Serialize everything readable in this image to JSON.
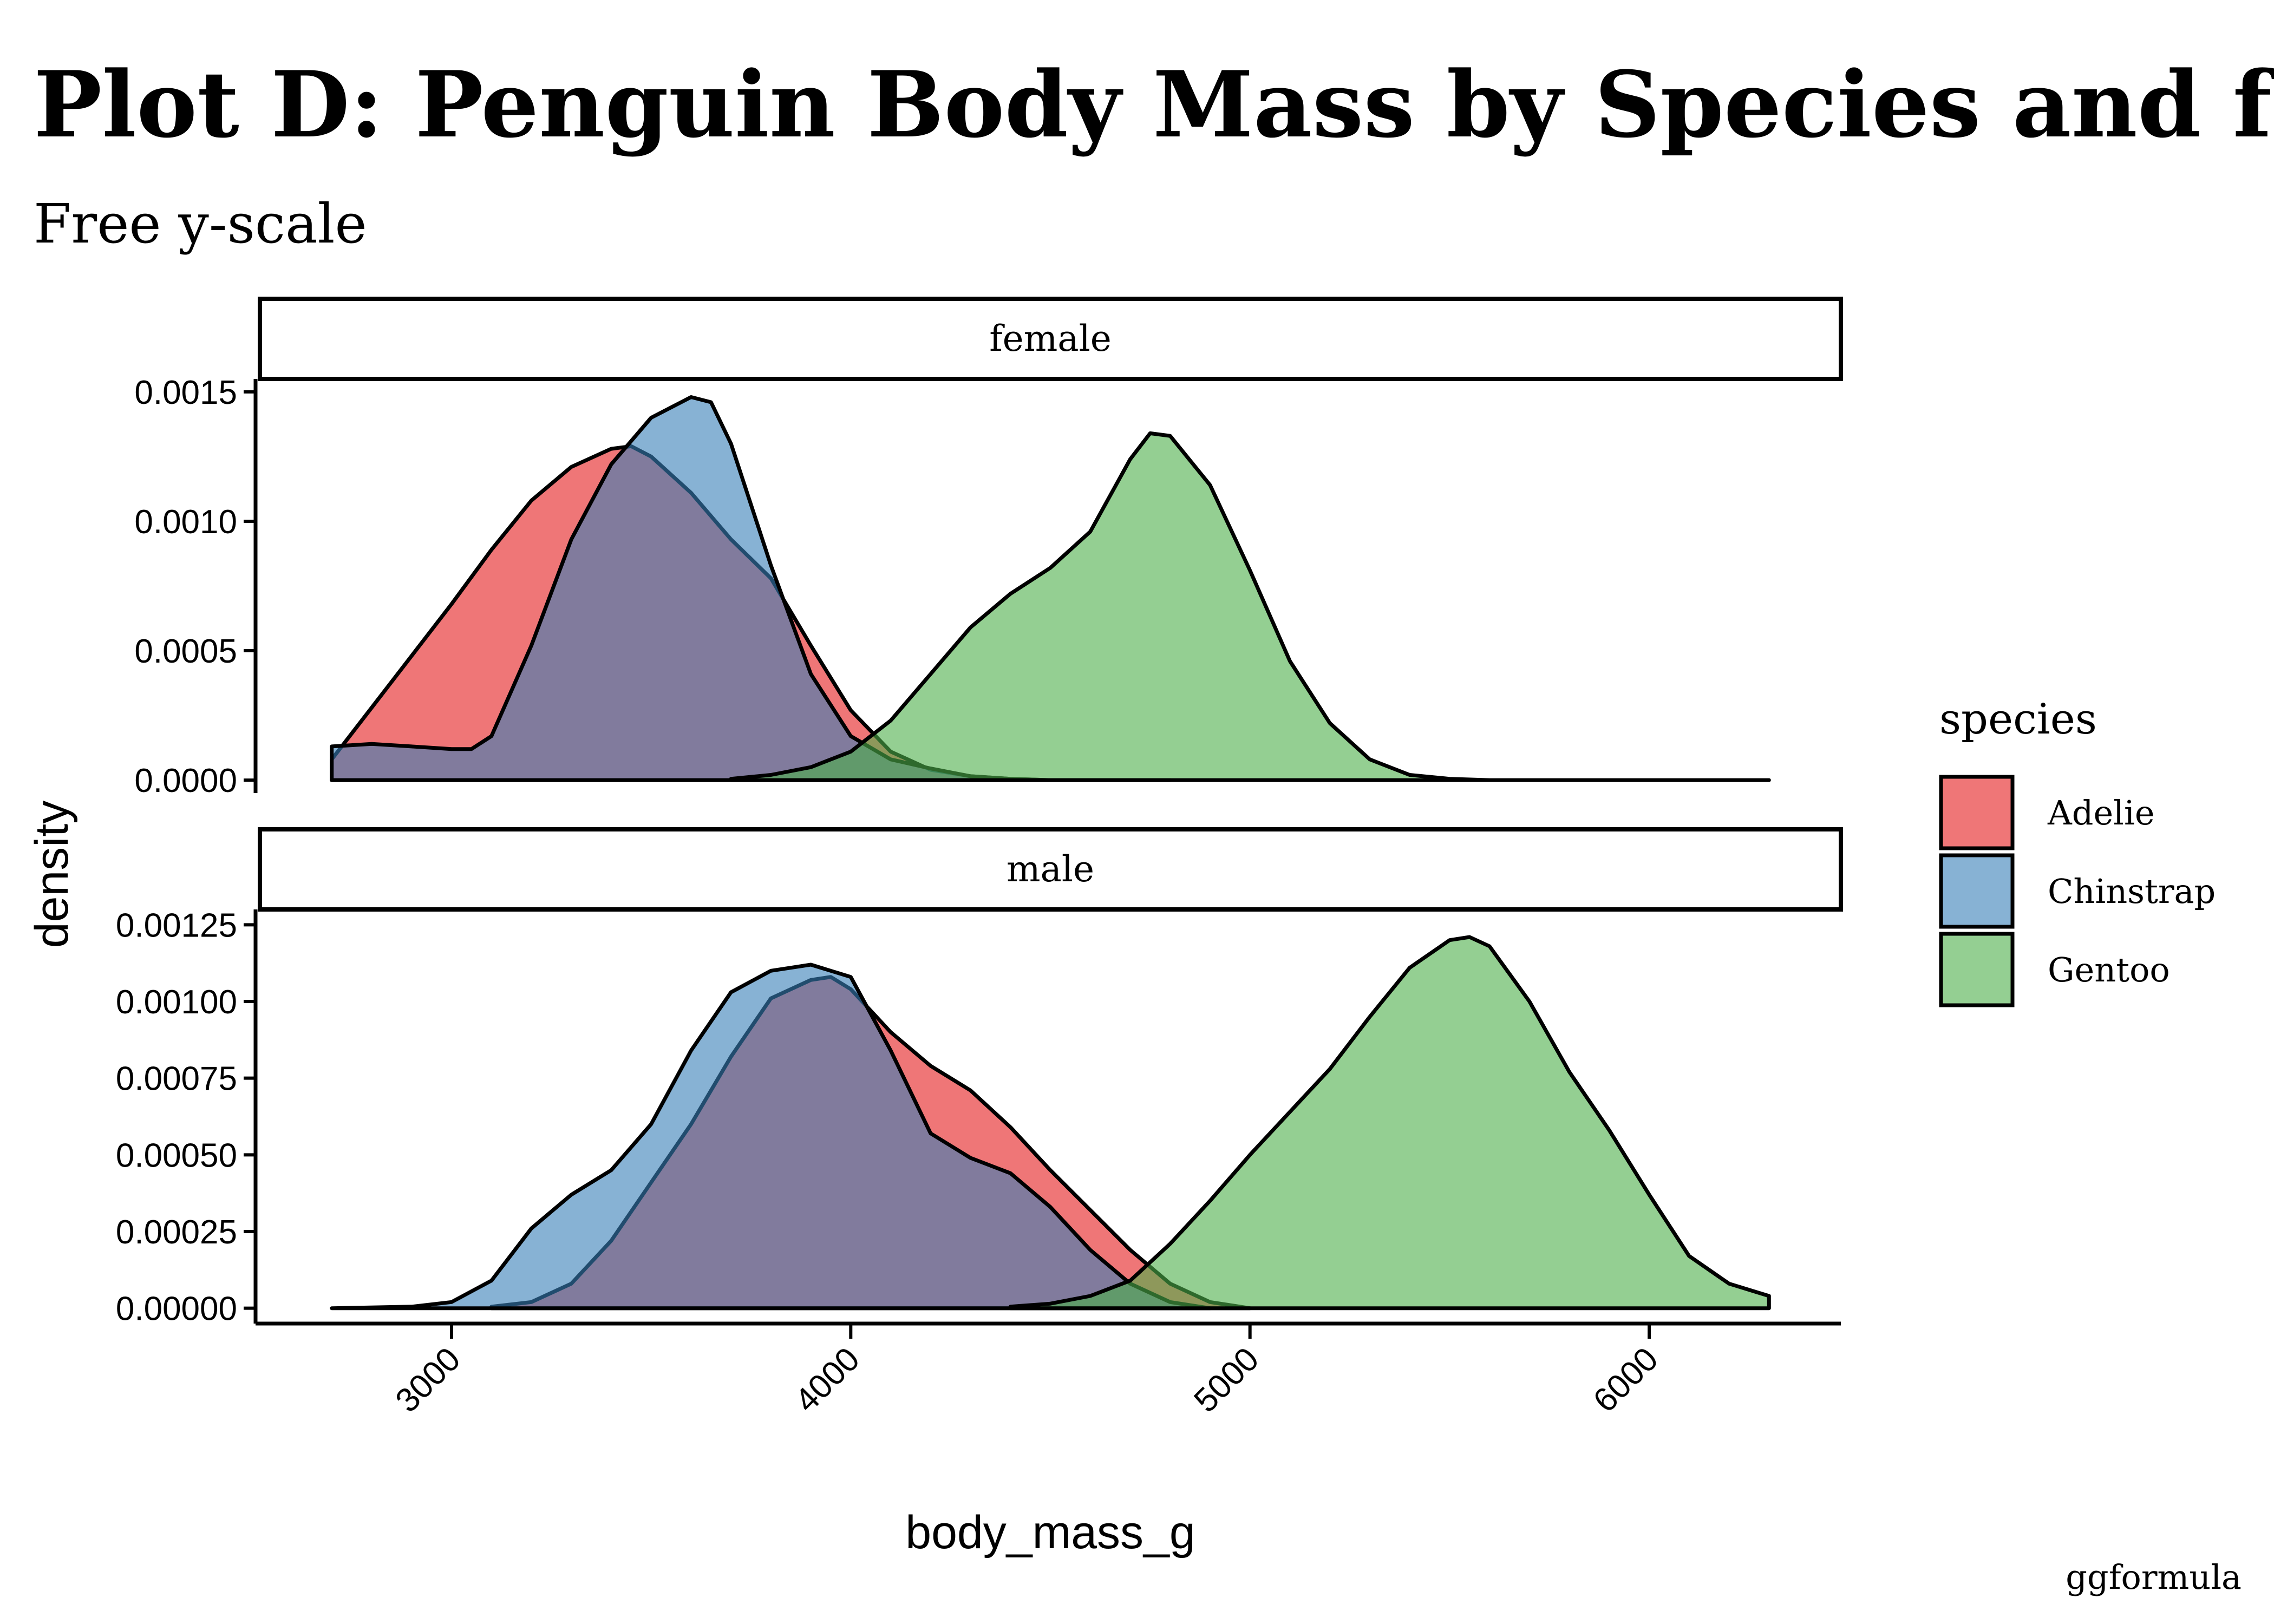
{
  "title": "Plot D: Penguin Body Mass by Species and facetted",
  "subtitle": "Free y-scale",
  "caption": "ggformula",
  "chart_data": {
    "type": "area",
    "subtype": "density",
    "xlabel": "body_mass_g",
    "ylabel": "density",
    "xlim": [
      2520,
      6480
    ],
    "x_ticks": [
      3000,
      4000,
      5000,
      6000
    ],
    "x_tick_labels": [
      "3000",
      "4000",
      "5000",
      "6000"
    ],
    "legend": {
      "title": "species",
      "position": "right",
      "entries": [
        {
          "name": "Adelie",
          "color": "#E41A1C"
        },
        {
          "name": "Chinstrap",
          "color": "#377EB8"
        },
        {
          "name": "Gentoo",
          "color": "#4DAF4A"
        }
      ]
    },
    "facets": [
      {
        "label": "female",
        "ylim": [
          -5e-05,
          0.00155
        ],
        "y_ticks": [
          0,
          0.0005,
          0.001,
          0.0015
        ],
        "y_tick_labels": [
          "0.0000",
          "0.0005",
          "0.0010",
          "0.0015"
        ],
        "series": [
          {
            "name": "Adelie",
            "color": "#E41A1C",
            "x": [
              2700,
              2800,
              2900,
              3000,
              3100,
              3200,
              3300,
              3400,
              3450,
              3500,
              3600,
              3700,
              3800,
              3900,
              4000,
              4100,
              4200,
              4300,
              4400,
              4500,
              4600,
              4700,
              4800
            ],
            "y": [
              8e-05,
              0.00028,
              0.00048,
              0.00068,
              0.00089,
              0.00108,
              0.00121,
              0.00128,
              0.00129,
              0.00125,
              0.00111,
              0.00093,
              0.00078,
              0.00052,
              0.00027,
              0.00011,
              4e-05,
              1.5e-05,
              5e-06,
              0,
              0,
              0,
              0
            ]
          },
          {
            "name": "Chinstrap",
            "color": "#377EB8",
            "x": [
              2700,
              2800,
              2900,
              3000,
              3050,
              3100,
              3200,
              3300,
              3400,
              3500,
              3600,
              3650,
              3700,
              3800,
              3900,
              4000,
              4100,
              4200,
              4300,
              4400,
              4500,
              4600,
              4700,
              4800
            ],
            "y": [
              0.00013,
              0.00014,
              0.00013,
              0.00012,
              0.00012,
              0.00017,
              0.00052,
              0.00093,
              0.00122,
              0.0014,
              0.00148,
              0.00146,
              0.0013,
              0.00083,
              0.00041,
              0.00017,
              8e-05,
              4.5e-05,
              1.5e-05,
              5e-06,
              0,
              0,
              0,
              0
            ]
          },
          {
            "name": "Gentoo",
            "color": "#4DAF4A",
            "x": [
              3700,
              3800,
              3900,
              4000,
              4100,
              4200,
              4300,
              4400,
              4500,
              4600,
              4700,
              4750,
              4800,
              4900,
              5000,
              5100,
              5200,
              5300,
              5400,
              5500,
              5600,
              5700,
              5800,
              5900,
              6000,
              6100,
              6200,
              6300
            ],
            "y": [
              5e-06,
              2e-05,
              5e-05,
              0.00011,
              0.00023,
              0.00041,
              0.00059,
              0.00072,
              0.00082,
              0.00096,
              0.00124,
              0.00134,
              0.00133,
              0.00114,
              0.00081,
              0.00046,
              0.00022,
              8e-05,
              2e-05,
              5e-06,
              0,
              0,
              0,
              0,
              0,
              0,
              0,
              0
            ]
          }
        ]
      },
      {
        "label": "male",
        "ylim": [
          -5e-05,
          0.0013
        ],
        "y_ticks": [
          0,
          0.00025,
          0.0005,
          0.00075,
          0.001,
          0.00125
        ],
        "y_tick_labels": [
          "0.00000",
          "0.00025",
          "0.00050",
          "0.00075",
          "0.00100",
          "0.00125"
        ],
        "series": [
          {
            "name": "Adelie",
            "color": "#E41A1C",
            "x": [
              3100,
              3200,
              3300,
              3400,
              3500,
              3600,
              3700,
              3800,
              3900,
              3950,
              4000,
              4100,
              4200,
              4300,
              4400,
              4500,
              4600,
              4700,
              4800,
              4900,
              5000
            ],
            "y": [
              5e-06,
              2e-05,
              8e-05,
              0.00022,
              0.00041,
              0.0006,
              0.00082,
              0.00101,
              0.00107,
              0.00108,
              0.00104,
              0.0009,
              0.00079,
              0.00071,
              0.00059,
              0.00045,
              0.00032,
              0.00019,
              8e-05,
              2e-05,
              0
            ]
          },
          {
            "name": "Chinstrap",
            "color": "#377EB8",
            "x": [
              2700,
              2900,
              3000,
              3100,
              3200,
              3300,
              3400,
              3500,
              3600,
              3700,
              3800,
              3850,
              3900,
              4000,
              4100,
              4200,
              4300,
              4400,
              4500,
              4600,
              4700,
              4800,
              4900
            ],
            "y": [
              0,
              5e-06,
              2e-05,
              9e-05,
              0.00026,
              0.00037,
              0.00045,
              0.0006,
              0.00084,
              0.00103,
              0.0011,
              0.00111,
              0.00112,
              0.00108,
              0.00084,
              0.00057,
              0.00049,
              0.00044,
              0.00033,
              0.00019,
              8e-05,
              2e-05,
              0
            ]
          },
          {
            "name": "Gentoo",
            "color": "#4DAF4A",
            "x": [
              4400,
              4500,
              4600,
              4700,
              4800,
              4900,
              5000,
              5100,
              5200,
              5300,
              5400,
              5500,
              5550,
              5600,
              5700,
              5800,
              5900,
              6000,
              6100,
              6200,
              6300
            ],
            "y": [
              5e-06,
              1.5e-05,
              4e-05,
              9e-05,
              0.00021,
              0.00035,
              0.0005,
              0.00064,
              0.00078,
              0.00095,
              0.00111,
              0.0012,
              0.00121,
              0.00118,
              0.001,
              0.00077,
              0.00058,
              0.00037,
              0.00017,
              8e-05,
              4e-05
            ]
          }
        ]
      }
    ]
  }
}
